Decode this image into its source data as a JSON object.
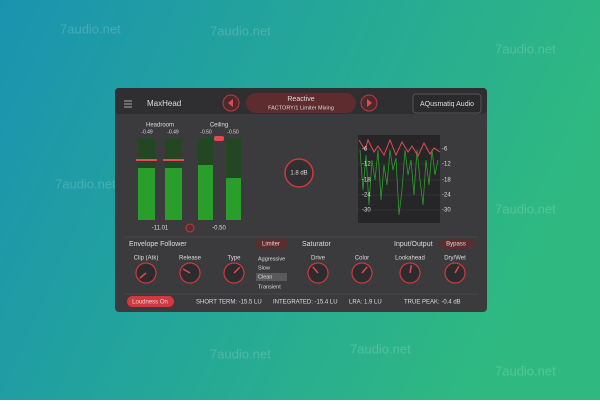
{
  "watermark": "7audio.net",
  "header": {
    "title": "MaxHead",
    "preset": "Reactive",
    "preset_path": "FACTORY/1 Limiter Mixing",
    "brand": "AQusmatiq Audio"
  },
  "meters": {
    "headroom": {
      "label": "Headroom",
      "left": "-0.49",
      "right": "-0.49",
      "readout": "-11.01"
    },
    "ceiling": {
      "label": "Ceiling",
      "left": "-0.50",
      "right": "-0.50",
      "readout": "-0.50"
    },
    "gain": "1.8 dB"
  },
  "scope": {
    "left_labels": [
      "-6",
      "-12",
      "-18",
      "-24",
      "-30"
    ],
    "right_labels": [
      "-6",
      "-12",
      "-18",
      "-24",
      "-30"
    ]
  },
  "envelope": {
    "title": "Envelope Follower",
    "mode": "Limiter",
    "knobs": [
      "Clip (Atk)",
      "Release",
      "Type"
    ],
    "types": [
      "Aggressive",
      "Slow",
      "Clean",
      "Transient"
    ]
  },
  "saturator": {
    "title": "Saturator",
    "knobs": [
      "Drive",
      "Color"
    ]
  },
  "io": {
    "title": "Input/Output",
    "bypass": "Bypass",
    "knobs": [
      "Lookahead",
      "Dry/Wet"
    ]
  },
  "footer": {
    "loudness": "Loudness On",
    "short_term": "SHORT TERM: -15.5 LU",
    "integrated": "INTEGRATED: -15.4 LU",
    "lra": "LRA: 1.9 LU",
    "true_peak": "TRUE PEAK: -0.4 dB"
  }
}
